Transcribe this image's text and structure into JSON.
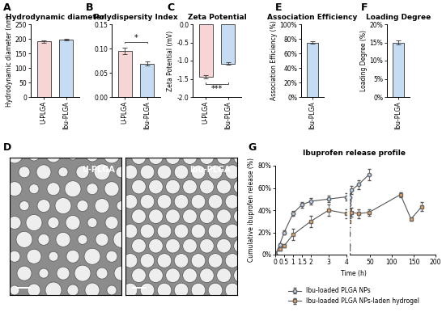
{
  "chart_data": [
    {
      "panel": "A",
      "type": "bar",
      "title": "Hydrodynamic diameter",
      "y_label": "Hydrodynamic diameter (nm)",
      "categories": [
        "U-PLGA",
        "Ibu-PLGA"
      ],
      "values": [
        191,
        197
      ],
      "errors": [
        4,
        3
      ],
      "colors": [
        "#f8d5d5",
        "#c6dcf2"
      ],
      "ylim": [
        0,
        250
      ],
      "yticks": [
        0,
        50,
        100,
        150,
        200,
        250
      ]
    },
    {
      "panel": "B",
      "type": "bar",
      "title": "Polydispersity Index",
      "categories": [
        "U-PLGA",
        "Ibu-PLGA"
      ],
      "values": [
        0.095,
        0.069
      ],
      "errors": [
        0.007,
        0.004
      ],
      "colors": [
        "#f8d5d5",
        "#c6dcf2"
      ],
      "ylim": [
        0,
        0.15
      ],
      "yticks": [
        {
          "value": 0,
          "label": "0.00"
        },
        {
          "value": 0.05,
          "label": "0.05"
        },
        {
          "value": 0.1,
          "label": "0.10"
        },
        {
          "value": 0.15,
          "label": "0.15"
        }
      ],
      "annotations": [
        "*"
      ]
    },
    {
      "panel": "C",
      "type": "bar",
      "title": "Zeta Potential",
      "y_label": "Zeta Potential (mV)",
      "categories": [
        "U-PLGA",
        "Ibu-PLGA"
      ],
      "values": [
        -1.45,
        -1.08
      ],
      "errors": [
        0.04,
        0.03
      ],
      "colors": [
        "#f8d5d5",
        "#c6dcf2"
      ],
      "ylim": [
        -2.0,
        0.0
      ],
      "yticks": [
        {
          "value": -2.0,
          "label": "-2.0"
        },
        {
          "value": -1.5,
          "label": "-1.5"
        },
        {
          "value": -1.0,
          "label": "-1.0"
        },
        {
          "value": -0.5,
          "label": "-0.5"
        },
        {
          "value": 0.0,
          "label": "0.0"
        }
      ],
      "annotations": [
        "***"
      ]
    },
    {
      "panel": "D",
      "type": "image",
      "labels": [
        "U-PLGA",
        "Ibu-PLGA"
      ]
    },
    {
      "panel": "E",
      "type": "bar",
      "title": "Association Efficiency",
      "y_label": "Association Efficiency (%)",
      "categories": [
        "Ibu-PLGA"
      ],
      "values": [
        75
      ],
      "errors": [
        2
      ],
      "colors": [
        "#c6dcf2"
      ],
      "ylim": [
        0,
        100
      ],
      "yticks": [
        {
          "value": 0,
          "label": "0%"
        },
        {
          "value": 20,
          "label": "20%"
        },
        {
          "value": 40,
          "label": "40%"
        },
        {
          "value": 60,
          "label": "60%"
        },
        {
          "value": 80,
          "label": "80%"
        },
        {
          "value": 100,
          "label": "100%"
        }
      ]
    },
    {
      "panel": "F",
      "type": "bar",
      "title": "Loading Degree",
      "y_label": "Loading Degree (%)",
      "categories": [
        "Ibu-PLGA"
      ],
      "values": [
        15
      ],
      "errors": [
        0.5
      ],
      "colors": [
        "#c6dcf2"
      ],
      "ylim": [
        0,
        20
      ],
      "yticks": [
        {
          "value": 0,
          "label": "0%"
        },
        {
          "value": 5,
          "label": "5%"
        },
        {
          "value": 10,
          "label": "10%"
        },
        {
          "value": 15,
          "label": "15%"
        },
        {
          "value": 20,
          "label": "20%"
        }
      ]
    },
    {
      "panel": "G",
      "type": "line",
      "title": "Ibuprofen release profile",
      "x_label": "Time (h)",
      "y_label": "Cumulative ibuprofen release (%)",
      "xlim": [
        0,
        200
      ],
      "axis_break": 4,
      "xticks": [
        0,
        0.5,
        1,
        1.5,
        2,
        3,
        4,
        50,
        100,
        150,
        200
      ],
      "ylim": [
        0,
        80
      ],
      "yticks": [
        {
          "value": 0,
          "label": "0%"
        },
        {
          "value": 20,
          "label": "20%"
        },
        {
          "value": 40,
          "label": "40%"
        },
        {
          "value": 60,
          "label": "60%"
        },
        {
          "value": 80,
          "label": "80%"
        }
      ],
      "legend": "lower center",
      "series": [
        {
          "name": "Ibu-loaded PLGA NPs",
          "color": "#b9cfea",
          "marker": "circle",
          "x": [
            0,
            0.25,
            0.5,
            1,
            1.5,
            2,
            3,
            4,
            8,
            24,
            48
          ],
          "values": [
            0,
            9,
            20,
            37,
            45,
            48,
            50,
            52,
            58,
            63,
            72
          ],
          "errors": [
            0,
            1.5,
            2,
            2,
            2.5,
            3,
            3,
            3.5,
            3.5,
            4,
            5
          ]
        },
        {
          "name": "Ibu-loaded PLGA NPs-laden hydrogel",
          "color": "#f5a85a",
          "marker": "square",
          "x": [
            0,
            0.25,
            0.5,
            1,
            2,
            3,
            4,
            8,
            24,
            48,
            120,
            144,
            168
          ],
          "values": [
            0,
            5,
            8,
            18,
            30,
            40,
            37,
            38,
            37,
            38,
            54,
            32,
            43
          ],
          "errors": [
            0,
            1,
            1.5,
            5,
            5,
            5,
            4,
            4,
            4,
            3,
            2,
            1.5,
            4
          ]
        }
      ]
    }
  ]
}
